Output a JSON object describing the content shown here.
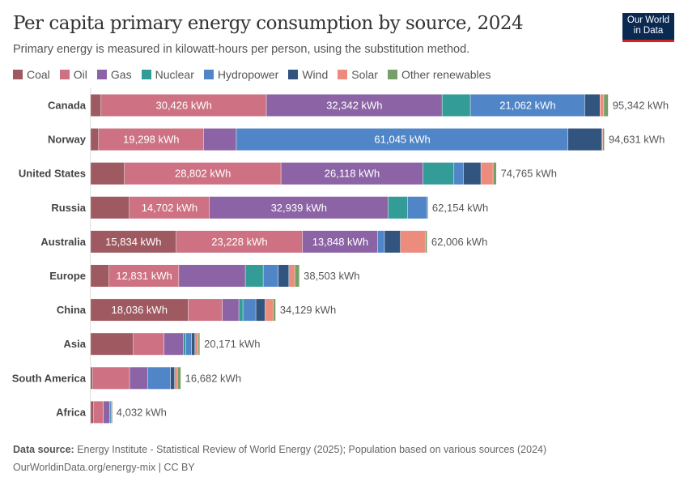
{
  "header": {
    "title": "Per capita primary energy consumption by source, 2024",
    "subtitle": "Primary energy is measured in kilowatt-hours per person, using the substitution method.",
    "logo": "Our World in Data"
  },
  "footer": {
    "source_label": "Data source:",
    "source_text": "Energy Institute - Statistical Review of World Energy (2025); Population based on various sources (2024)",
    "credit": "OurWorldinData.org/energy-mix | CC BY"
  },
  "chart_data": {
    "type": "bar",
    "orientation": "horizontal",
    "stacked": true,
    "unit": "kWh",
    "title": "Per capita primary energy consumption by source, 2024",
    "legend_position": "top-left",
    "grid": false,
    "xlim": [
      0,
      95342
    ],
    "categories": [
      "Canada",
      "Norway",
      "United States",
      "Russia",
      "Australia",
      "Europe",
      "China",
      "Asia",
      "South America",
      "Africa"
    ],
    "totals": [
      "95,342 kWh",
      "94,631 kWh",
      "74,765 kWh",
      "62,154 kWh",
      "62,006 kWh",
      "38,503 kWh",
      "34,129 kWh",
      "20,171 kWh",
      "16,682 kWh",
      "4,032 kWh"
    ],
    "series": [
      {
        "name": "Coal",
        "color": "#9F5A61",
        "values": [
          1990,
          1540,
          6300,
          7200,
          15834,
          3470,
          18036,
          7940,
          490,
          640
        ]
      },
      {
        "name": "Oil",
        "color": "#CE7283",
        "values": [
          30426,
          19298,
          28802,
          14702,
          23228,
          12831,
          6290,
          5660,
          6750,
          1790
        ]
      },
      {
        "name": "Gas",
        "color": "#8C64A6",
        "values": [
          32342,
          6050,
          26118,
          32939,
          13848,
          12250,
          3030,
          3580,
          3380,
          1190
        ]
      },
      {
        "name": "Nuclear",
        "color": "#339C96",
        "values": [
          5200,
          0,
          5720,
          3580,
          0,
          3280,
          745,
          400,
          0,
          40
        ]
      },
      {
        "name": "Hydropower",
        "color": "#5086C8",
        "values": [
          21062,
          61045,
          1730,
          3600,
          1240,
          2785,
          2385,
          1090,
          4170,
          250
        ]
      },
      {
        "name": "Wind",
        "color": "#32557F",
        "values": [
          2800,
          6260,
          3230,
          20,
          2930,
          1940,
          1690,
          600,
          745,
          40
        ]
      },
      {
        "name": "Solar",
        "color": "#EB8C7C",
        "values": [
          700,
          150,
          2235,
          60,
          4560,
          1090,
          1490,
          600,
          500,
          50
        ]
      },
      {
        "name": "Other renewables",
        "color": "#779F69",
        "values": [
          822,
          288,
          630,
          53,
          366,
          857,
          463,
          301,
          647,
          32
        ]
      }
    ]
  }
}
